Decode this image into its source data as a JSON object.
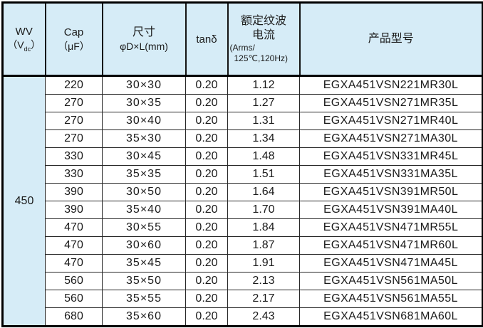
{
  "header": {
    "wv_title": "WV",
    "wv_unit_pre": "（V",
    "wv_unit_sub": "dc",
    "wv_unit_post": "）",
    "cap_title": "Cap",
    "cap_unit": "（μF）",
    "size_title": "尺寸",
    "size_unit": "φD×L(mm)",
    "tand_title": "tanδ",
    "ripple_title_line1": "额定纹波",
    "ripple_title_line2": "电流",
    "ripple_unit_line1": "(Arms/",
    "ripple_unit_line2": "125℃,120Hz)",
    "model_title": "产品型号"
  },
  "wv_value": "450",
  "rows": [
    {
      "cap": "220",
      "size": "30×30",
      "tand": "0.20",
      "ripple": "1.12",
      "model": "EGXA451VSN221MR30L"
    },
    {
      "cap": "270",
      "size": "30×35",
      "tand": "0.20",
      "ripple": "1.27",
      "model": "EGXA451VSN271MR35L"
    },
    {
      "cap": "270",
      "size": "30×40",
      "tand": "0.20",
      "ripple": "1.31",
      "model": "EGXA451VSN271MR40L"
    },
    {
      "cap": "270",
      "size": "35×30",
      "tand": "0.20",
      "ripple": "1.34",
      "model": "EGXA451VSN271MA30L"
    },
    {
      "cap": "330",
      "size": "30×45",
      "tand": "0.20",
      "ripple": "1.48",
      "model": "EGXA451VSN331MR45L"
    },
    {
      "cap": "330",
      "size": "35×35",
      "tand": "0.20",
      "ripple": "1.51",
      "model": "EGXA451VSN331MA35L"
    },
    {
      "cap": "390",
      "size": "30×50",
      "tand": "0.20",
      "ripple": "1.64",
      "model": "EGXA451VSN391MR50L"
    },
    {
      "cap": "390",
      "size": "35×40",
      "tand": "0.20",
      "ripple": "1.70",
      "model": "EGXA451VSN391MA40L"
    },
    {
      "cap": "470",
      "size": "30×55",
      "tand": "0.20",
      "ripple": "1.84",
      "model": "EGXA451VSN471MR55L"
    },
    {
      "cap": "470",
      "size": "30×60",
      "tand": "0.20",
      "ripple": "1.87",
      "model": "EGXA451VSN471MR60L"
    },
    {
      "cap": "470",
      "size": "35×45",
      "tand": "0.20",
      "ripple": "1.91",
      "model": "EGXA451VSN471MA45L"
    },
    {
      "cap": "560",
      "size": "35×50",
      "tand": "0.20",
      "ripple": "2.13",
      "model": "EGXA451VSN561MA50L"
    },
    {
      "cap": "560",
      "size": "35×55",
      "tand": "0.20",
      "ripple": "2.17",
      "model": "EGXA451VSN561MA55L"
    },
    {
      "cap": "680",
      "size": "35×60",
      "tand": "0.20",
      "ripple": "2.43",
      "model": "EGXA451VSN681MA60L"
    }
  ],
  "colors": {
    "header_bg": "#d6ecf7",
    "border": "#000000",
    "text": "#1a1a1a"
  }
}
